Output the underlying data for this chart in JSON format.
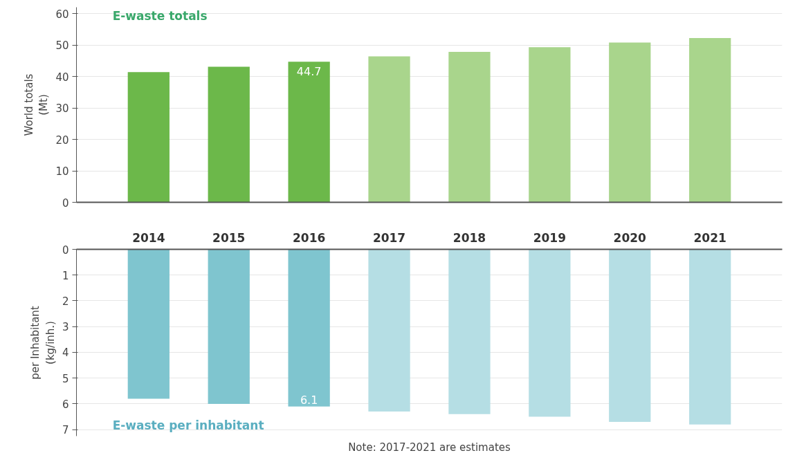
{
  "chart_data": [
    {
      "type": "bar",
      "title": "E-waste totals",
      "ylabel": "World totals\n(Mt)",
      "categories": [
        "2014",
        "2015",
        "2016",
        "2017",
        "2018",
        "2019",
        "2020",
        "2021"
      ],
      "values": [
        41.4,
        43.1,
        44.7,
        46.4,
        47.8,
        49.3,
        50.8,
        52.2
      ],
      "colors": [
        "#6cb84a",
        "#6cb84a",
        "#6cb84a",
        "#a9d58c",
        "#a9d58c",
        "#a9d58c",
        "#a9d58c",
        "#a9d58c"
      ],
      "value_labels": [
        null,
        null,
        "44.7",
        null,
        null,
        null,
        null,
        null
      ],
      "ylim": [
        0,
        62
      ],
      "yticks": [
        0,
        10,
        20,
        30,
        40,
        50,
        60
      ],
      "grid": "y",
      "tick_labels": "y"
    },
    {
      "type": "bar",
      "title": "E-waste per inhabitant",
      "ylabel": "per Inhabitant\n(kg/inh.)",
      "categories": [
        "2014",
        "2015",
        "2016",
        "2017",
        "2018",
        "2019",
        "2020",
        "2021"
      ],
      "values": [
        5.8,
        6.0,
        6.1,
        6.3,
        6.4,
        6.5,
        6.7,
        6.8
      ],
      "colors": [
        "#7fc5cf",
        "#7fc5cf",
        "#7fc5cf",
        "#b5dee4",
        "#b5dee4",
        "#b5dee4",
        "#b5dee4",
        "#b5dee4"
      ],
      "value_labels": [
        null,
        null,
        "6.1",
        null,
        null,
        null,
        null,
        null
      ],
      "ylim": [
        7.25,
        0
      ],
      "yticks": [
        0,
        1,
        2,
        3,
        4,
        5,
        6,
        7
      ],
      "grid": "y",
      "annotations": [
        "Note: 2017-2021 are estimates"
      ]
    }
  ]
}
